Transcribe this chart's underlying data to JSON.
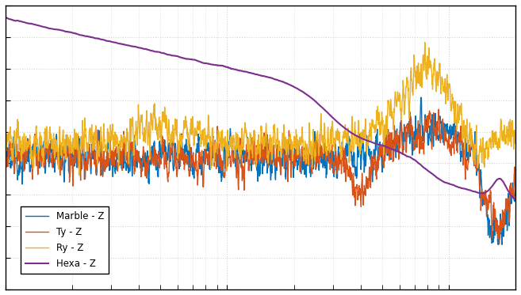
{
  "colors": {
    "marble": "#0072BD",
    "ty": "#D95319",
    "ry": "#EDB120",
    "hexa": "#7E2F8E"
  },
  "legend_labels": [
    "Marble - Z",
    "Ty - Z",
    "Ry - Z",
    "Hexa - Z"
  ],
  "background_color": "#ffffff",
  "grid_color": "#d3d3d3",
  "figsize": [
    6.57,
    3.73
  ],
  "dpi": 100,
  "seed": 12345
}
